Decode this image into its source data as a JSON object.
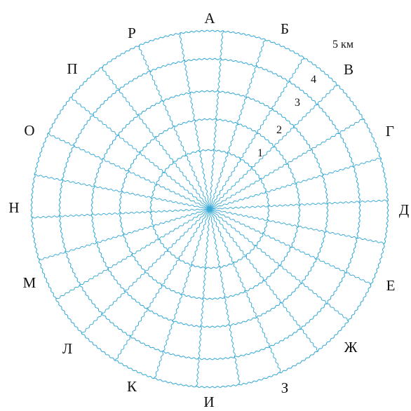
{
  "diagram": {
    "line_color": "#37a9d6",
    "text_color": "#111111",
    "sectors": [
      "А",
      "Б",
      "В",
      "Г",
      "Д",
      "Е",
      "Ж",
      "З",
      "И",
      "К",
      "Л",
      "М",
      "Н",
      "О",
      "П",
      "Р"
    ],
    "ring_labels": [
      "1",
      "2",
      "3",
      "4"
    ],
    "scale_label": "5 км"
  }
}
